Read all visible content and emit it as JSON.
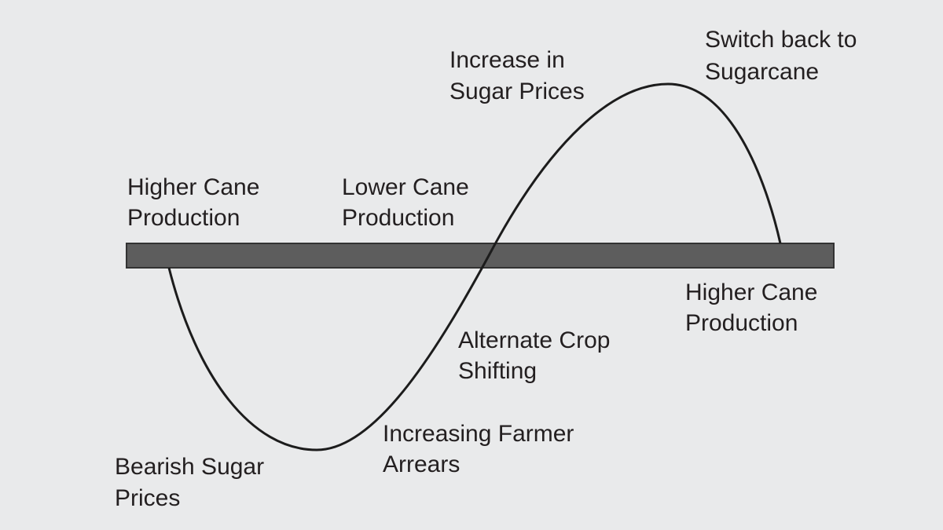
{
  "labels": [
    {
      "lines": [
        "Higher Cane",
        "Production"
      ]
    },
    {
      "lines": [
        "Lower Cane",
        "Production"
      ]
    },
    {
      "lines": [
        "Increase in",
        "Sugar Prices"
      ]
    },
    {
      "lines": [
        "Switch back to",
        "Sugarcane"
      ]
    },
    {
      "lines": [
        "Higher Cane",
        "Production"
      ]
    },
    {
      "lines": [
        "Alternate Crop",
        "Shifting"
      ]
    },
    {
      "lines": [
        "Increasing Farmer",
        "Arrears"
      ]
    },
    {
      "lines": [
        "Bearish Sugar",
        "Prices"
      ]
    }
  ]
}
